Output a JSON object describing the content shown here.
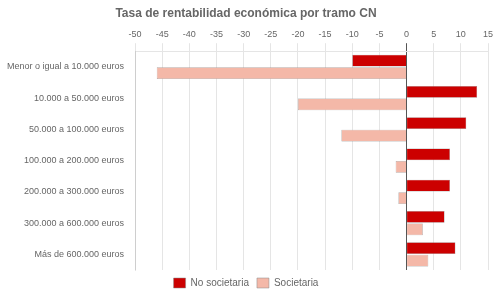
{
  "chart_data": {
    "type": "bar",
    "orientation": "horizontal",
    "title": "Tasa de rentabilidad económica por tramo CN",
    "categories": [
      "Menor o igual a 10.000 euros",
      "10.000 a 50.000 euros",
      "50.000 a 100.000 euros",
      "100.000 a 200.000 euros",
      "200.000 a 300.000 euros",
      "300.000 a 600.000 euros",
      "Más de 600.000 euros"
    ],
    "series": [
      {
        "name": "No societaria",
        "color": "#cc0000",
        "values": [
          -10,
          13,
          11,
          8,
          8,
          7,
          9
        ]
      },
      {
        "name": "Societaria",
        "color": "#f4b8a8",
        "values": [
          -46,
          -20,
          -12,
          -2,
          -1.5,
          3,
          4
        ]
      }
    ],
    "xlim": [
      -50,
      15
    ],
    "xticks": [
      -50,
      -45,
      -40,
      -35,
      -30,
      -25,
      -20,
      -15,
      -10,
      -5,
      0,
      5,
      10,
      15
    ],
    "grid": true,
    "legend": "bottom"
  }
}
